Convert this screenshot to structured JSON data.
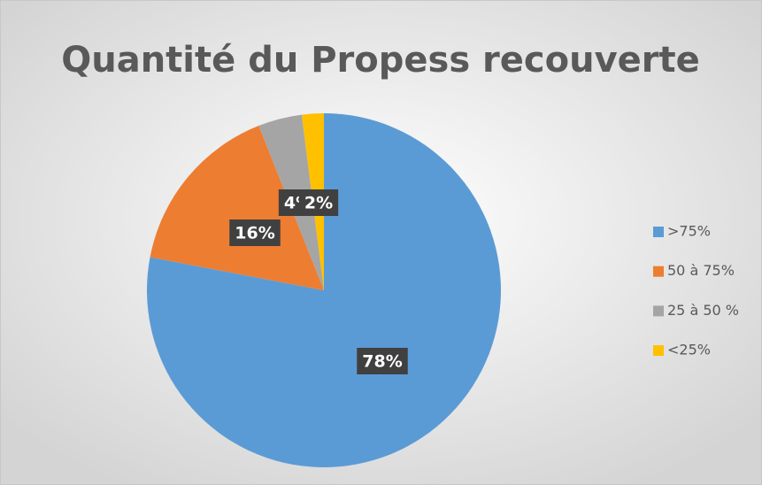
{
  "chart_data": {
    "type": "pie",
    "title": "Quantité du Propess recouverte",
    "categories": [
      ">75%",
      "50 à 75%",
      "25 à 50 %",
      "<25%"
    ],
    "values": [
      78,
      16,
      4,
      2
    ],
    "value_labels": [
      "78%",
      "16%",
      "4%",
      "2%"
    ],
    "colors": [
      "#5b9bd5",
      "#ed7d31",
      "#a5a5a5",
      "#ffc000"
    ],
    "legend": "right"
  }
}
